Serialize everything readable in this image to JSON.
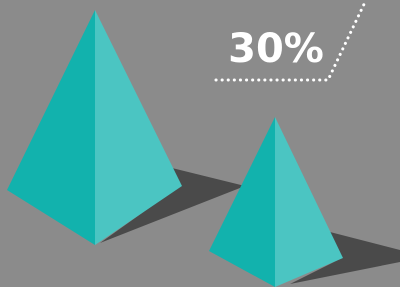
{
  "label": {
    "text": "30%"
  }
}
